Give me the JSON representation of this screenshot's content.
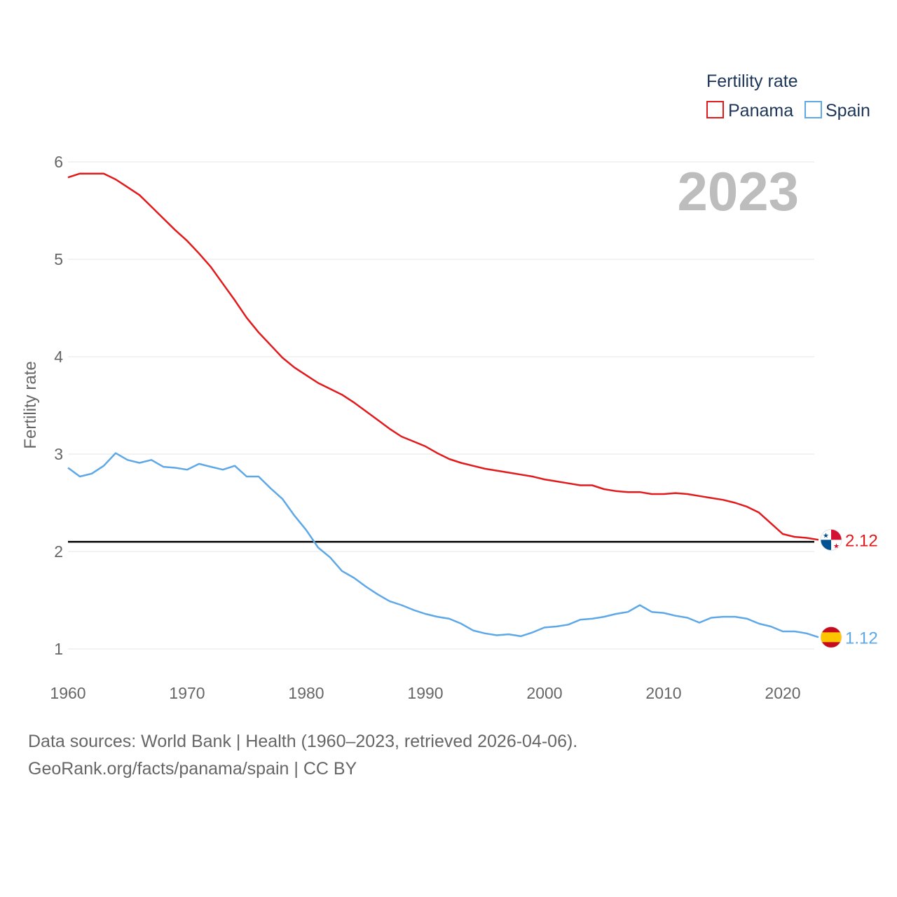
{
  "chart_data": {
    "type": "line",
    "title": "",
    "current_year": "2023",
    "xlabel": "",
    "ylabel": "Fertility rate",
    "xlim": [
      1960,
      2023
    ],
    "ylim": [
      0.6,
      6
    ],
    "x_ticks": [
      1960,
      1970,
      1980,
      1990,
      2000,
      2010,
      2020
    ],
    "y_ticks": [
      1,
      2,
      3,
      4,
      5,
      6
    ],
    "legend_title": "Fertility rate",
    "legend_position": "top-right",
    "reference_line": 2.1,
    "x": [
      1960,
      1961,
      1962,
      1963,
      1964,
      1965,
      1966,
      1967,
      1968,
      1969,
      1970,
      1971,
      1972,
      1973,
      1974,
      1975,
      1976,
      1977,
      1978,
      1979,
      1980,
      1981,
      1982,
      1983,
      1984,
      1985,
      1986,
      1987,
      1988,
      1989,
      1990,
      1991,
      1992,
      1993,
      1994,
      1995,
      1996,
      1997,
      1998,
      1999,
      2000,
      2001,
      2002,
      2003,
      2004,
      2005,
      2006,
      2007,
      2008,
      2009,
      2010,
      2011,
      2012,
      2013,
      2014,
      2015,
      2016,
      2017,
      2018,
      2019,
      2020,
      2021,
      2022,
      2023
    ],
    "series": [
      {
        "name": "Panama",
        "color": "#e31a1c",
        "end_value_label": "2.12",
        "flag_icon": "panama-flag-icon",
        "values": [
          5.84,
          5.88,
          5.88,
          5.88,
          5.82,
          5.74,
          5.66,
          5.54,
          5.42,
          5.3,
          5.19,
          5.06,
          4.92,
          4.75,
          4.58,
          4.4,
          4.25,
          4.12,
          3.99,
          3.89,
          3.81,
          3.73,
          3.67,
          3.61,
          3.53,
          3.44,
          3.35,
          3.26,
          3.18,
          3.13,
          3.08,
          3.01,
          2.95,
          2.91,
          2.88,
          2.85,
          2.83,
          2.81,
          2.79,
          2.77,
          2.74,
          2.72,
          2.7,
          2.68,
          2.68,
          2.64,
          2.62,
          2.61,
          2.61,
          2.59,
          2.59,
          2.6,
          2.59,
          2.57,
          2.55,
          2.53,
          2.5,
          2.46,
          2.4,
          2.29,
          2.18,
          2.15,
          2.14,
          2.12
        ]
      },
      {
        "name": "Spain",
        "color": "#5ea8e8",
        "end_value_label": "1.12",
        "flag_icon": "spain-flag-icon",
        "values": [
          2.86,
          2.77,
          2.8,
          2.88,
          3.01,
          2.94,
          2.91,
          2.94,
          2.87,
          2.86,
          2.84,
          2.9,
          2.87,
          2.84,
          2.88,
          2.77,
          2.77,
          2.65,
          2.54,
          2.37,
          2.22,
          2.04,
          1.94,
          1.8,
          1.73,
          1.64,
          1.56,
          1.49,
          1.45,
          1.4,
          1.36,
          1.33,
          1.31,
          1.26,
          1.19,
          1.16,
          1.14,
          1.15,
          1.13,
          1.17,
          1.22,
          1.23,
          1.25,
          1.3,
          1.31,
          1.33,
          1.36,
          1.38,
          1.45,
          1.38,
          1.37,
          1.34,
          1.32,
          1.27,
          1.32,
          1.33,
          1.33,
          1.31,
          1.26,
          1.23,
          1.18,
          1.18,
          1.16,
          1.12
        ]
      }
    ]
  },
  "footer": {
    "sources": "Data sources: World Bank | Health (1960–2023, retrieved 2026-04-06).",
    "credit": "GeoRank.org/facts/panama/spain | CC BY"
  }
}
